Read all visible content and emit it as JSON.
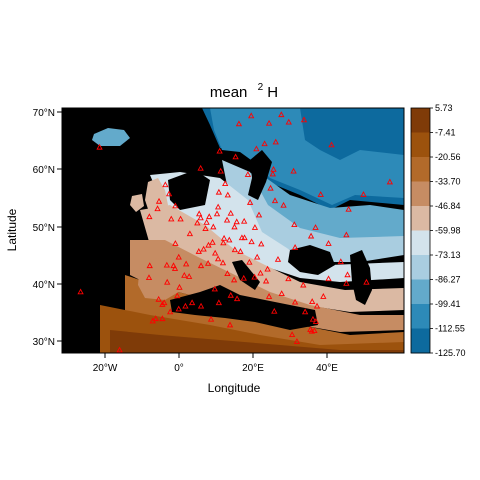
{
  "title": {
    "prefix": "mean",
    "superscript": "2",
    "symbol": "H"
  },
  "axes": {
    "xlabel": "Longitude",
    "ylabel": "Latitude",
    "x_ticks": [
      "20°W",
      "0°",
      "20°E",
      "40°E"
    ],
    "y_ticks": [
      "70°N",
      "60°N",
      "50°N",
      "40°N",
      "30°N"
    ]
  },
  "legend": {
    "labels": [
      "5.73",
      "-7.41",
      "-20.56",
      "-33.70",
      "-46.84",
      "-59.98",
      "-73.13",
      "-86.27",
      "-99.41",
      "-112.55",
      "-125.70"
    ],
    "colors": [
      "#7f3b08",
      "#9c520d",
      "#b26a2a",
      "#c68c63",
      "#dbb9a3",
      "#d3e3ec",
      "#a9cde0",
      "#63aacb",
      "#2d8ab8",
      "#0d6a9e"
    ]
  },
  "map_colors": {
    "land_unknown": "#000000",
    "station_marker": "#ff0000"
  },
  "chart_data": {
    "type": "map",
    "variable": "mean 2H",
    "xlabel": "Longitude",
    "ylabel": "Latitude",
    "xlim": [
      -32,
      60
    ],
    "ylim": [
      28,
      71
    ],
    "legend_breaks": [
      5.73,
      -7.41,
      -20.56,
      -33.7,
      -46.84,
      -59.98,
      -73.13,
      -86.27,
      -99.41,
      -112.55,
      -125.7
    ],
    "stations": [
      [
        -27,
        38.7
      ],
      [
        -16.5,
        28.5
      ],
      [
        -5,
        36.5
      ],
      [
        -6,
        37.4
      ],
      [
        -4.5,
        36.8
      ],
      [
        -3.7,
        40.4
      ],
      [
        -1,
        38
      ],
      [
        -0.4,
        39.5
      ],
      [
        -8.6,
        41.2
      ],
      [
        -8.4,
        43.3
      ],
      [
        -3.8,
        43.4
      ],
      [
        -2,
        43.3
      ],
      [
        -1.6,
        42.8
      ],
      [
        0.9,
        41.6
      ],
      [
        2.2,
        41.4
      ],
      [
        1.4,
        43.6
      ],
      [
        -0.6,
        44.8
      ],
      [
        -1.5,
        47.2
      ],
      [
        2.4,
        48.9
      ],
      [
        4.8,
        45.8
      ],
      [
        5.4,
        43.3
      ],
      [
        7.3,
        43.7
      ],
      [
        6.1,
        46.2
      ],
      [
        7.4,
        46.9
      ],
      [
        8.5,
        47.4
      ],
      [
        9.2,
        45.5
      ],
      [
        11.3,
        43.8
      ],
      [
        12.5,
        41.9
      ],
      [
        14.3,
        40.8
      ],
      [
        16.9,
        41.1
      ],
      [
        15.1,
        37.5
      ],
      [
        13.4,
        38.1
      ],
      [
        9.1,
        39.2
      ],
      [
        10,
        44.5
      ],
      [
        11.4,
        47.3
      ],
      [
        13,
        47.8
      ],
      [
        16.4,
        48.2
      ],
      [
        14.4,
        50.1
      ],
      [
        13.4,
        52.5
      ],
      [
        10,
        53.6
      ],
      [
        8.7,
        50.1
      ],
      [
        6.9,
        50.9
      ],
      [
        4.4,
        50.8
      ],
      [
        4.9,
        52.4
      ],
      [
        5.3,
        51.7
      ],
      [
        6.6,
        49.8
      ],
      [
        7.6,
        51.9
      ],
      [
        9.7,
        52.4
      ],
      [
        11.6,
        48.1
      ],
      [
        12.4,
        51.3
      ],
      [
        15,
        51
      ],
      [
        17,
        51.1
      ],
      [
        19.9,
        50
      ],
      [
        21,
        52.2
      ],
      [
        18.6,
        54.4
      ],
      [
        12.6,
        55.7
      ],
      [
        10.2,
        56.2
      ],
      [
        18,
        59.3
      ],
      [
        11.9,
        57.7
      ],
      [
        24.9,
        60.2
      ],
      [
        25.5,
        65
      ],
      [
        20.3,
        63.8
      ],
      [
        10.7,
        59.9
      ],
      [
        5.3,
        60.4
      ],
      [
        10.4,
        63.4
      ],
      [
        18.9,
        69.6
      ],
      [
        15.6,
        68.2
      ],
      [
        27,
        69.8
      ],
      [
        29,
        68.5
      ],
      [
        23.7,
        68.3
      ],
      [
        22.5,
        64.7
      ],
      [
        14.7,
        62.4
      ],
      [
        -21.9,
        64.1
      ],
      [
        -3.2,
        55.9
      ],
      [
        -4.2,
        57.5
      ],
      [
        -1.5,
        53.8
      ],
      [
        -0.1,
        51.5
      ],
      [
        -2.6,
        51.5
      ],
      [
        -6.3,
        53.3
      ],
      [
        -8.5,
        51.9
      ],
      [
        -5.9,
        54.6
      ],
      [
        24.1,
        56.9
      ],
      [
        25.3,
        54.7
      ],
      [
        27.6,
        53.9
      ],
      [
        24.7,
        59.4
      ],
      [
        30.3,
        59.9
      ],
      [
        37.6,
        55.8
      ],
      [
        30.5,
        50.5
      ],
      [
        36.2,
        50
      ],
      [
        35,
        48.5
      ],
      [
        30.7,
        46.5
      ],
      [
        26.1,
        44.4
      ],
      [
        23.3,
        42.7
      ],
      [
        21.4,
        42
      ],
      [
        20.5,
        44.8
      ],
      [
        19.8,
        41.3
      ],
      [
        18.4,
        43.9
      ],
      [
        16,
        45.8
      ],
      [
        14.5,
        46.1
      ],
      [
        19,
        47.5
      ],
      [
        21.6,
        47.1
      ],
      [
        17.1,
        48.2
      ],
      [
        23.7,
        37.9
      ],
      [
        22.9,
        40.6
      ],
      [
        25.1,
        35.3
      ],
      [
        28.9,
        41
      ],
      [
        32.9,
        39.9
      ],
      [
        27.1,
        38.4
      ],
      [
        30.7,
        36.9
      ],
      [
        35.3,
        37
      ],
      [
        33.4,
        35.2
      ],
      [
        35.5,
        33.9
      ],
      [
        36.3,
        33.5
      ],
      [
        35.2,
        31.8
      ],
      [
        34.8,
        32.1
      ],
      [
        35.9,
        31.9
      ],
      [
        31.2,
        30
      ],
      [
        29.9,
        31.2
      ],
      [
        36.6,
        36.2
      ],
      [
        39.7,
        41
      ],
      [
        44.8,
        41.7
      ],
      [
        49.9,
        40.4
      ],
      [
        44.5,
        40.2
      ],
      [
        38.3,
        37.9
      ],
      [
        49.1,
        55.8
      ],
      [
        56.2,
        58
      ],
      [
        60.6,
        56.8
      ],
      [
        40.5,
        64.5
      ],
      [
        33.1,
        68.9
      ],
      [
        45.1,
        53.2
      ],
      [
        44.5,
        48.7
      ],
      [
        43,
        44
      ],
      [
        39.7,
        47.2
      ],
      [
        3,
        36.8
      ],
      [
        10.2,
        36.8
      ],
      [
        -7.6,
        33.6
      ],
      [
        -6.8,
        34
      ],
      [
        -5,
        34
      ],
      [
        13.2,
        32.9
      ],
      [
        8.1,
        33.9
      ],
      [
        1.2,
        36.2
      ],
      [
        -0.6,
        35.7
      ],
      [
        5.4,
        36.2
      ],
      [
        -2.9,
        35.2
      ]
    ]
  }
}
